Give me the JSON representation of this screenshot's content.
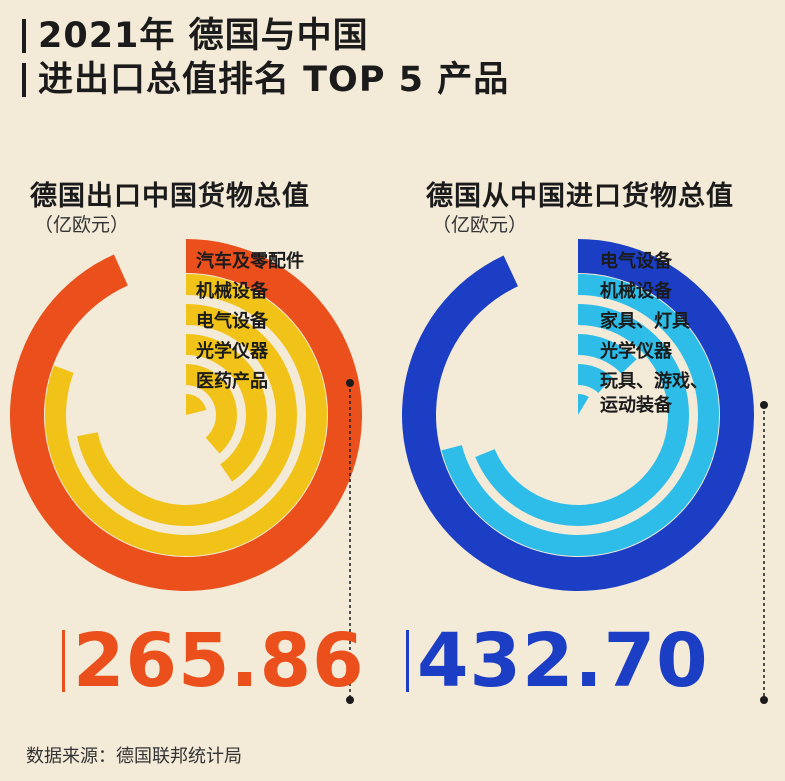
{
  "title": {
    "line1": "2021年 德国与中国",
    "line2": "进出口总值排名 TOP 5 产品"
  },
  "colors": {
    "background": "#f3ead8",
    "export_total": "#ea4f1c",
    "export_items": "#f1c318",
    "import_total": "#1b3ec4",
    "import_items": "#2ebde8"
  },
  "chart_data": [
    {
      "type": "radial-bar",
      "title": "德国出口中国货物总值",
      "unit": "（亿欧元）",
      "total_value": "265.86",
      "categories": [
        "汽车及零配件",
        "机械设备",
        "电气设备",
        "光学仪器",
        "医药产品"
      ],
      "values": [
        230,
        205,
        115,
        110,
        60
      ],
      "value_scale_max": 285
    },
    {
      "type": "radial-bar",
      "title": "德国从中国进口货物总值",
      "unit": "（亿欧元）",
      "total_value": "432.70",
      "categories": [
        "电气设备",
        "机械设备",
        "家具、灯具",
        "光学仪器",
        "玩具、游戏、运动装备"
      ],
      "values": [
        330,
        320,
        60,
        55,
        40
      ],
      "value_scale_max": 465
    }
  ],
  "source": "数据来源：德国联邦统计局"
}
